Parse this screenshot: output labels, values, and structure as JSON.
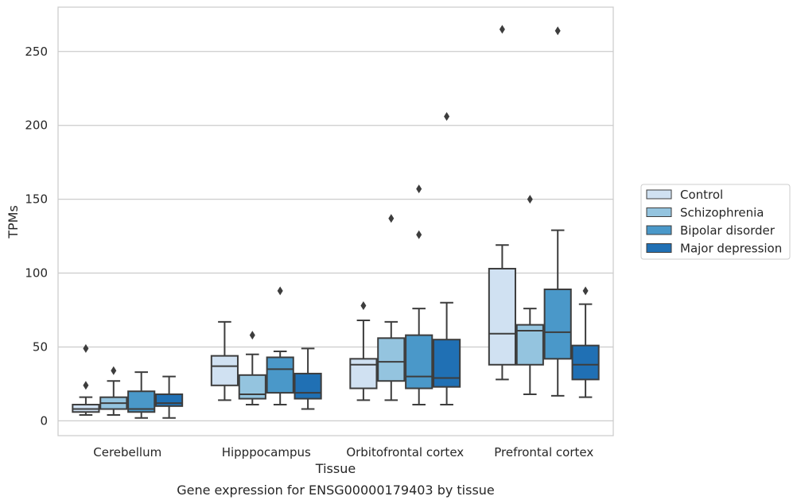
{
  "caption": "Gene expression for ENSG00000179403 by tissue",
  "chart_data": {
    "type": "box",
    "xlabel": "Tissue",
    "ylabel": "TPMs",
    "ylim": [
      -10,
      280
    ],
    "yticks": [
      0,
      50,
      100,
      150,
      200,
      250
    ],
    "grid": "horizontal",
    "legend_position": "right",
    "categories": [
      "Cerebellum",
      "Hipppocampus",
      "Orbitofrontal cortex",
      "Prefrontal cortex"
    ],
    "series": [
      {
        "name": "Control",
        "color": "#d0e1f2",
        "boxes": [
          {
            "whisker_low": 4,
            "q1": 6,
            "median": 8,
            "q3": 11,
            "whisker_high": 16,
            "outliers": [
              24,
              49
            ]
          },
          {
            "whisker_low": 14,
            "q1": 24,
            "median": 37,
            "q3": 44,
            "whisker_high": 67,
            "outliers": []
          },
          {
            "whisker_low": 14,
            "q1": 22,
            "median": 38,
            "q3": 42,
            "whisker_high": 68,
            "outliers": [
              78
            ]
          },
          {
            "whisker_low": 28,
            "q1": 38,
            "median": 59,
            "q3": 103,
            "whisker_high": 119,
            "outliers": [
              265
            ]
          }
        ]
      },
      {
        "name": "Schizophrenia",
        "color": "#94c4df",
        "boxes": [
          {
            "whisker_low": 4,
            "q1": 8,
            "median": 12,
            "q3": 16,
            "whisker_high": 27,
            "outliers": [
              34
            ]
          },
          {
            "whisker_low": 11,
            "q1": 15,
            "median": 18,
            "q3": 31,
            "whisker_high": 45,
            "outliers": [
              58
            ]
          },
          {
            "whisker_low": 14,
            "q1": 27,
            "median": 40,
            "q3": 56,
            "whisker_high": 67,
            "outliers": [
              137
            ]
          },
          {
            "whisker_low": 18,
            "q1": 38,
            "median": 61,
            "q3": 65,
            "whisker_high": 76,
            "outliers": [
              150
            ]
          }
        ]
      },
      {
        "name": "Bipolar disorder",
        "color": "#4a98c9",
        "boxes": [
          {
            "whisker_low": 2,
            "q1": 6,
            "median": 8,
            "q3": 20,
            "whisker_high": 33,
            "outliers": []
          },
          {
            "whisker_low": 11,
            "q1": 19,
            "median": 35,
            "q3": 43,
            "whisker_high": 47,
            "outliers": [
              88
            ]
          },
          {
            "whisker_low": 11,
            "q1": 22,
            "median": 30,
            "q3": 58,
            "whisker_high": 76,
            "outliers": [
              126,
              157
            ]
          },
          {
            "whisker_low": 17,
            "q1": 42,
            "median": 60,
            "q3": 89,
            "whisker_high": 129,
            "outliers": [
              264
            ]
          }
        ]
      },
      {
        "name": "Major depression",
        "color": "#2070b4",
        "boxes": [
          {
            "whisker_low": 2,
            "q1": 10,
            "median": 12,
            "q3": 18,
            "whisker_high": 30,
            "outliers": []
          },
          {
            "whisker_low": 8,
            "q1": 15,
            "median": 19,
            "q3": 32,
            "whisker_high": 49,
            "outliers": []
          },
          {
            "whisker_low": 11,
            "q1": 23,
            "median": 29,
            "q3": 55,
            "whisker_high": 80,
            "outliers": [
              206
            ]
          },
          {
            "whisker_low": 16,
            "q1": 28,
            "median": 38,
            "q3": 51,
            "whisker_high": 79,
            "outliers": [
              88
            ]
          }
        ]
      }
    ]
  }
}
